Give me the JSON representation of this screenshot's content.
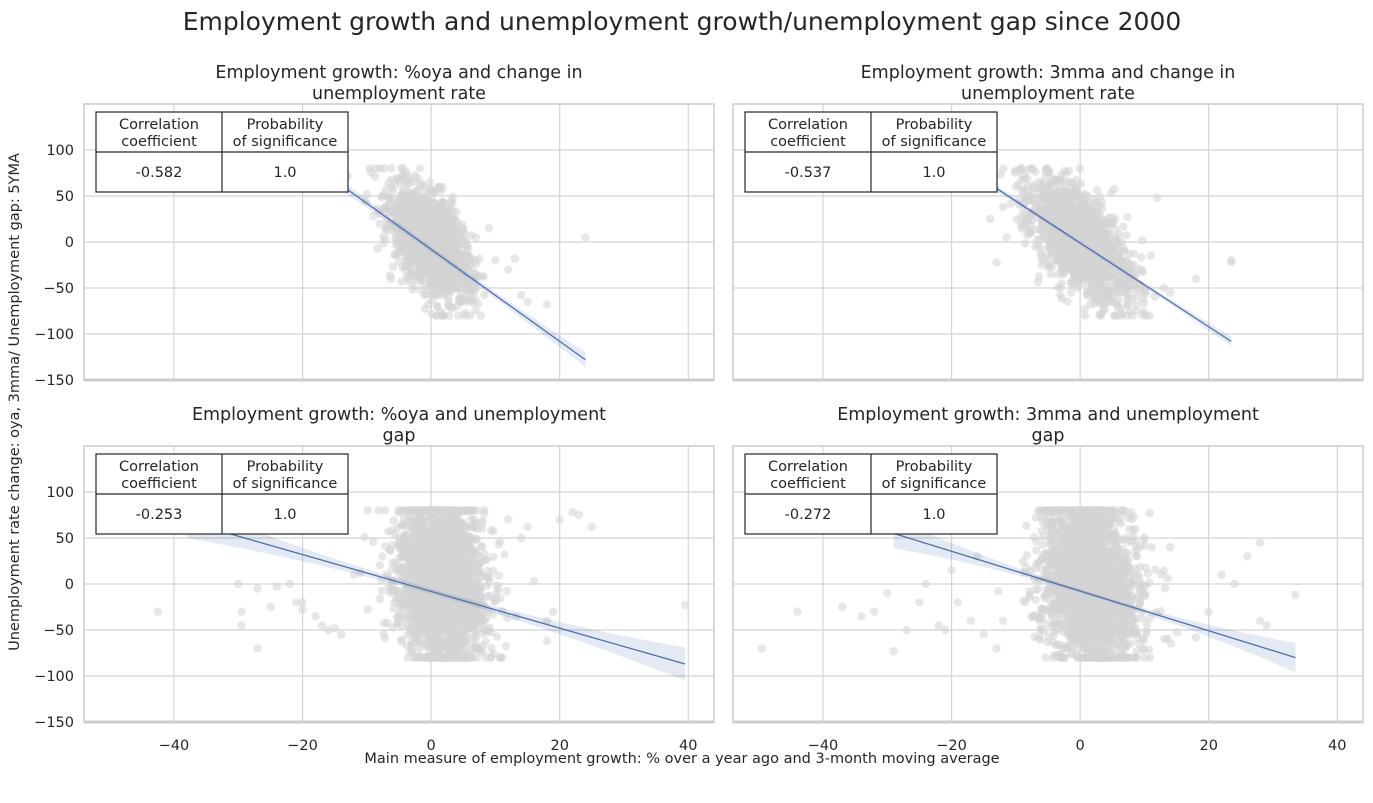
{
  "figure": {
    "title": "Employment growth and unemployment growth/unemployment gap since 2000",
    "xlabel": "Main measure of employment growth: % over a year ago and 3-month moving average",
    "ylabel": "Unemployment rate change: oya, 3mma/ Unemployment gap: 5YMA"
  },
  "chart_data": [
    {
      "type": "scatter",
      "title_lines": [
        "Employment growth: %oya and change in",
        "unemployment rate"
      ],
      "xlim": [
        -54,
        44
      ],
      "ylim": [
        -150,
        150
      ],
      "xticks": [
        -40,
        -20,
        0,
        20,
        40
      ],
      "yticks": [
        -150,
        -100,
        -50,
        0,
        50,
        100
      ],
      "show_xticklabels": false,
      "show_yticklabels": true,
      "grid": true,
      "point_color": "#d3d3d3",
      "cloud": {
        "n": 1400,
        "xmean": 0,
        "xsd": 3.2,
        "slope": -5.5,
        "resid_sd": 26,
        "ymin": -80,
        "ymax": 80
      },
      "extra_points": [
        [
          -17,
          80
        ],
        [
          -16,
          72
        ],
        [
          -13,
          72
        ],
        [
          -10,
          52
        ],
        [
          -9,
          28
        ],
        [
          -8,
          20
        ],
        [
          -7,
          14
        ],
        [
          -6,
          32
        ],
        [
          9,
          15
        ],
        [
          10,
          -20
        ],
        [
          12,
          -30
        ],
        [
          13,
          -18
        ],
        [
          14,
          -58
        ],
        [
          15,
          -65
        ],
        [
          18,
          -68
        ],
        [
          24,
          5
        ]
      ],
      "fit": {
        "x1": -20,
        "y1": 92,
        "x2": 24,
        "y2": -128,
        "ci_start": 3,
        "ci_end": 8,
        "line_color": "#4c72b0"
      },
      "table": {
        "headers": [
          [
            "Correlation",
            "coefficient"
          ],
          [
            "Probability",
            "of significance"
          ]
        ],
        "values": [
          "-0.582",
          "1.0"
        ]
      }
    },
    {
      "type": "scatter",
      "title_lines": [
        "Employment growth: 3mma and change in",
        "unemployment rate"
      ],
      "xlim": [
        -54,
        44
      ],
      "ylim": [
        -150,
        150
      ],
      "xticks": [
        -40,
        -20,
        0,
        20,
        40
      ],
      "yticks": [
        -150,
        -100,
        -50,
        0,
        50,
        100
      ],
      "show_xticklabels": false,
      "show_yticklabels": false,
      "grid": true,
      "point_color": "#d3d3d3",
      "cloud": {
        "n": 1500,
        "xmean": 0,
        "xsd": 4.0,
        "slope": -5.0,
        "resid_sd": 26,
        "ymin": -80,
        "ymax": 80
      },
      "extra_points": [
        [
          -14,
          25
        ],
        [
          -13,
          -22
        ],
        [
          -12,
          38
        ],
        [
          -10,
          60
        ],
        [
          11,
          -15
        ],
        [
          12,
          48
        ],
        [
          13,
          -50
        ],
        [
          14,
          -55
        ],
        [
          18,
          -40
        ],
        [
          23.5,
          -20
        ],
        [
          23.5,
          -22
        ]
      ],
      "fit": {
        "x1": -20,
        "y1": 90,
        "x2": 23.5,
        "y2": -108,
        "ci_start": 2,
        "ci_end": 5,
        "line_color": "#4c72b0"
      },
      "table": {
        "headers": [
          [
            "Correlation",
            "coefficient"
          ],
          [
            "Probability",
            "of significance"
          ]
        ],
        "values": [
          "-0.537",
          "1.0"
        ]
      }
    },
    {
      "type": "scatter",
      "title_lines": [
        "Employment growth: %oya and unemployment",
        "gap"
      ],
      "xlim": [
        -54,
        44
      ],
      "ylim": [
        -150,
        150
      ],
      "xticks": [
        -40,
        -20,
        0,
        20,
        40
      ],
      "yticks": [
        -150,
        -100,
        -50,
        0,
        50,
        100
      ],
      "show_xticklabels": true,
      "show_yticklabels": true,
      "grid": true,
      "point_color": "#d3d3d3",
      "cloud": {
        "n": 2200,
        "xmean": 1.5,
        "xsd": 3.5,
        "slope": -2.2,
        "resid_sd": 45,
        "ymin": -80,
        "ymax": 80
      },
      "extra_points": [
        [
          -42.5,
          -30
        ],
        [
          -30,
          0
        ],
        [
          -29.5,
          -30
        ],
        [
          -29.5,
          -45
        ],
        [
          -27,
          -5
        ],
        [
          -27,
          -70
        ],
        [
          -25,
          -25
        ],
        [
          -24,
          -3
        ],
        [
          -22,
          0
        ],
        [
          -21,
          -20
        ],
        [
          -20,
          -28
        ],
        [
          -20,
          -20
        ],
        [
          -18,
          -35
        ],
        [
          -17,
          -45
        ],
        [
          -16,
          -50
        ],
        [
          -15,
          -48
        ],
        [
          -14,
          -55
        ],
        [
          -12,
          10
        ],
        [
          -11,
          12
        ],
        [
          12,
          70
        ],
        [
          14,
          50
        ],
        [
          15,
          62
        ],
        [
          16,
          3
        ],
        [
          18,
          -40
        ],
        [
          18,
          -62
        ],
        [
          19,
          -30
        ],
        [
          20,
          70
        ],
        [
          22,
          78
        ],
        [
          23,
          75
        ],
        [
          25,
          62
        ],
        [
          39.5,
          -23
        ]
      ],
      "fit": {
        "x1": -38,
        "y1": 68,
        "x2": 39.5,
        "y2": -87,
        "ci_start": 3,
        "ci_end": 18,
        "line_color": "#4c72b0"
      },
      "table": {
        "headers": [
          [
            "Correlation",
            "coefficient"
          ],
          [
            "Probability",
            "of significance"
          ]
        ],
        "values": [
          "-0.253",
          "1.0"
        ]
      }
    },
    {
      "type": "scatter",
      "title_lines": [
        "Employment growth: 3mma and unemployment",
        "gap"
      ],
      "xlim": [
        -54,
        44
      ],
      "ylim": [
        -150,
        150
      ],
      "xticks": [
        -40,
        -20,
        0,
        20,
        40
      ],
      "yticks": [
        -150,
        -100,
        -50,
        0,
        50,
        100
      ],
      "show_xticklabels": true,
      "show_yticklabels": false,
      "grid": true,
      "point_color": "#d3d3d3",
      "cloud": {
        "n": 2200,
        "xmean": 1.5,
        "xsd": 3.8,
        "slope": -2.5,
        "resid_sd": 45,
        "ymin": -80,
        "ymax": 80
      },
      "extra_points": [
        [
          -49.5,
          -70
        ],
        [
          -44,
          -30
        ],
        [
          -37,
          -25
        ],
        [
          -34,
          -35
        ],
        [
          -32,
          -30
        ],
        [
          -30,
          -10
        ],
        [
          -29,
          -73
        ],
        [
          -27,
          -50
        ],
        [
          -25,
          -20
        ],
        [
          -24,
          0
        ],
        [
          -22,
          -45
        ],
        [
          -21,
          -50
        ],
        [
          -20,
          15
        ],
        [
          -19,
          -20
        ],
        [
          -17,
          -40
        ],
        [
          -16,
          30
        ],
        [
          -15,
          -55
        ],
        [
          -13,
          -70
        ],
        [
          -12,
          -40
        ],
        [
          14,
          40
        ],
        [
          18,
          -58
        ],
        [
          20,
          -30
        ],
        [
          22,
          10
        ],
        [
          24,
          0
        ],
        [
          26,
          30
        ],
        [
          28,
          45
        ],
        [
          28,
          -40
        ],
        [
          29,
          -45
        ],
        [
          33.5,
          -12
        ]
      ],
      "fit": {
        "x1": -29,
        "y1": 55,
        "x2": 33.5,
        "y2": -80,
        "ci_start": 2,
        "ci_end": 16,
        "line_color": "#4c72b0"
      },
      "table": {
        "headers": [
          [
            "Correlation",
            "coefficient"
          ],
          [
            "Probability",
            "of significance"
          ]
        ],
        "values": [
          "-0.272",
          "1.0"
        ]
      }
    }
  ]
}
